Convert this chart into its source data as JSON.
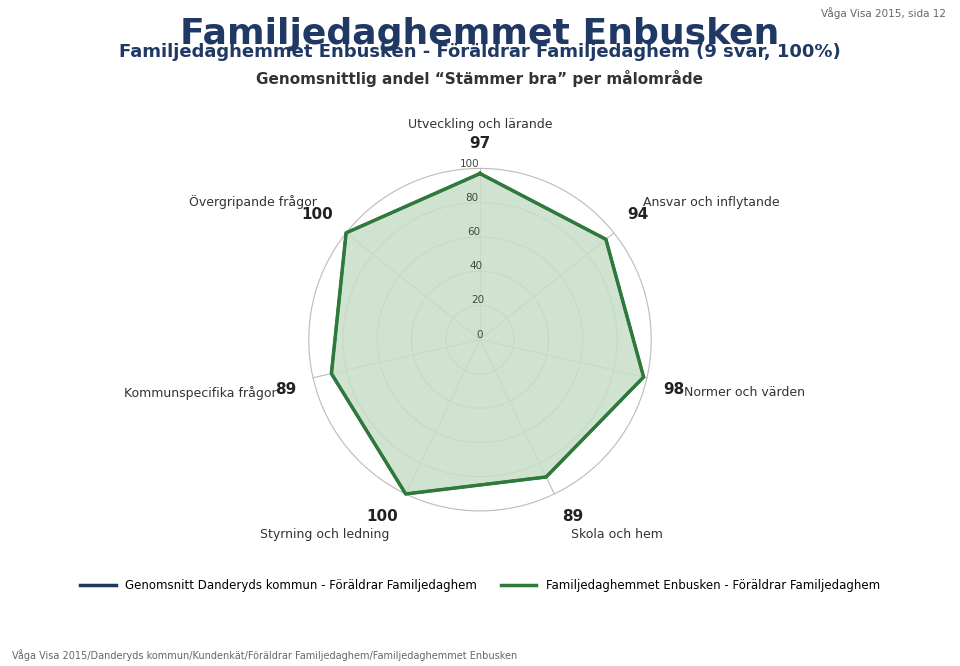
{
  "title": "Familjedaghemmet Enbusken",
  "subtitle": "Familjedaghemmet Enbusken - Föräldrar Familjedaghem (9 svar, 100%)",
  "subtitle2": "Genomsnittlig andel “Stämmer bra” per målområde",
  "top_right_text": "Våga Visa 2015, sida 12",
  "bottom_text": "Våga Visa 2015/Danderyds kommun/Kundenkät/Föräldrar Familjedaghem/Familjedaghemmet Enbusken",
  "categories": [
    "Utveckling och lärande",
    "Ansvar och inflytande",
    "Normer och värden",
    "Skola och hem",
    "Styrning och ledning",
    "Kommunspecifika frågor",
    "Övergripande frågor"
  ],
  "values_green": [
    97,
    94,
    98,
    89,
    100,
    89,
    100
  ],
  "values_blue": [
    97,
    94,
    98,
    89,
    100,
    89,
    100
  ],
  "label_values_green": [
    97,
    94,
    98,
    89,
    100,
    89,
    100
  ],
  "color_blue": "#1f3864",
  "color_green": "#2d7a3a",
  "fill_green": "#c8dfc8",
  "grid_color": "#bbbbbb",
  "r_max": 100,
  "r_ticks": [
    20,
    40,
    60,
    80,
    100
  ],
  "r_tick_labels": [
    "20",
    "40",
    "60",
    "80",
    "100"
  ],
  "r_label_0": "0",
  "legend_blue": "Genomsnitt Danderyds kommun - Föräldrar Familjedaghem",
  "legend_green": "Familjedaghemmet Enbusken - Föräldrar Familjedaghem",
  "title_color": "#1f3864",
  "title_fontsize": 26,
  "subtitle_fontsize": 13,
  "subtitle2_fontsize": 11,
  "label_fontsize": 9,
  "value_fontsize": 11
}
